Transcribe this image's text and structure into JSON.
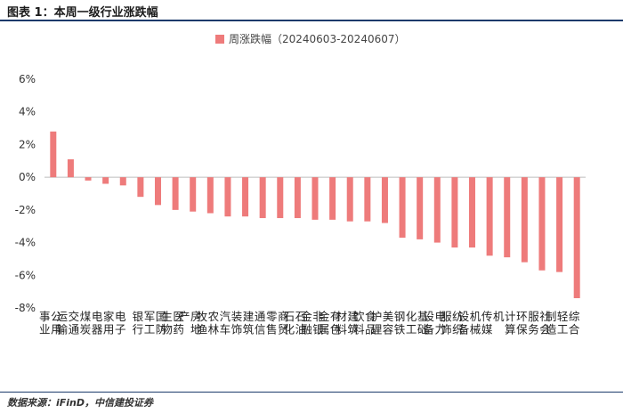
{
  "header": {
    "title": "图表 1：本周一级行业涨跌幅"
  },
  "footer": {
    "source": "数据来源：iFinD，中信建投证券"
  },
  "chart_data": {
    "type": "bar",
    "legend": {
      "label": "周涨跌幅（20240603-20240607）",
      "placement": "top-center"
    },
    "title": "",
    "xlabel": "",
    "ylabel": "",
    "ylim": [
      -8,
      6
    ],
    "yticks": [
      "6%",
      "4%",
      "2%",
      "0%",
      "-2%",
      "-4%",
      "-6%",
      "-8%"
    ],
    "grid": false,
    "bar_color": "#ee7b7b",
    "categories": [
      "公用事业",
      "交通运输",
      "煤炭",
      "家用电器",
      "电子",
      "银行",
      "国防军工",
      "医药生物",
      "房地产",
      "农林牧渔",
      "汽车",
      "建筑装饰",
      "通信",
      "商贸零售",
      "石油石化",
      "非银金融",
      "有色金属",
      "建筑材料",
      "食品饮料",
      "美容护理",
      "钢铁",
      "基础化工",
      "电力设备",
      "纺织服饰",
      "机械设备",
      "传媒",
      "计算机",
      "环保",
      "社会服务",
      "轻工制造",
      "综合"
    ],
    "values": [
      2.8,
      1.1,
      -0.2,
      -0.4,
      -0.5,
      -1.2,
      -1.7,
      -2.0,
      -2.1,
      -2.2,
      -2.4,
      -2.4,
      -2.5,
      -2.5,
      -2.5,
      -2.6,
      -2.6,
      -2.7,
      -2.7,
      -2.8,
      -3.7,
      -3.8,
      -4.0,
      -4.3,
      -4.3,
      -4.8,
      -4.9,
      -5.2,
      -5.7,
      -5.8,
      -7.4
    ]
  }
}
